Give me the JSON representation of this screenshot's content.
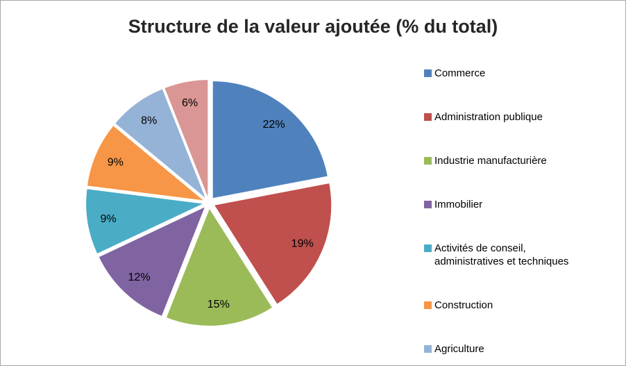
{
  "title": "Structure de la valeur ajoutée (% du total)",
  "chart_data": {
    "type": "pie",
    "title": "Structure de la valeur ajoutée (% du total)",
    "legend_position": "right",
    "direction": "clockwise",
    "start_angle_deg": 0,
    "exploded": true,
    "slices": [
      {
        "label": "Commerce",
        "value": 22,
        "data_label": "22%",
        "color": "#4F81BD"
      },
      {
        "label": "Administration publique",
        "value": 19,
        "data_label": "19%",
        "color": "#C0504D"
      },
      {
        "label": "Industrie manufacturière",
        "value": 15,
        "data_label": "15%",
        "color": "#9BBB59"
      },
      {
        "label": "Immobilier",
        "value": 12,
        "data_label": "12%",
        "color": "#8064A2"
      },
      {
        "label": "Activités de conseil, administratives et techniques",
        "value": 9,
        "data_label": "9%",
        "color": "#4BACC6"
      },
      {
        "label": "Construction",
        "value": 9,
        "data_label": "9%",
        "color": "#F79646"
      },
      {
        "label": "Agriculture",
        "value": 8,
        "data_label": "8%",
        "color": "#95B3D7"
      },
      {
        "label": "",
        "value": 6,
        "data_label": "6%",
        "color": "#D99694"
      }
    ]
  },
  "legend": {
    "items": [
      {
        "label": "Commerce",
        "color": "#4F81BD"
      },
      {
        "label": "Administration publique",
        "color": "#C0504D"
      },
      {
        "label": "Industrie manufacturière",
        "color": "#9BBB59"
      },
      {
        "label": "Immobilier",
        "color": "#8064A2"
      },
      {
        "label": "Activités de conseil, administratives et techniques",
        "color": "#4BACC6"
      },
      {
        "label": "Construction",
        "color": "#F79646"
      },
      {
        "label": "Agriculture",
        "color": "#95B3D7"
      }
    ]
  }
}
